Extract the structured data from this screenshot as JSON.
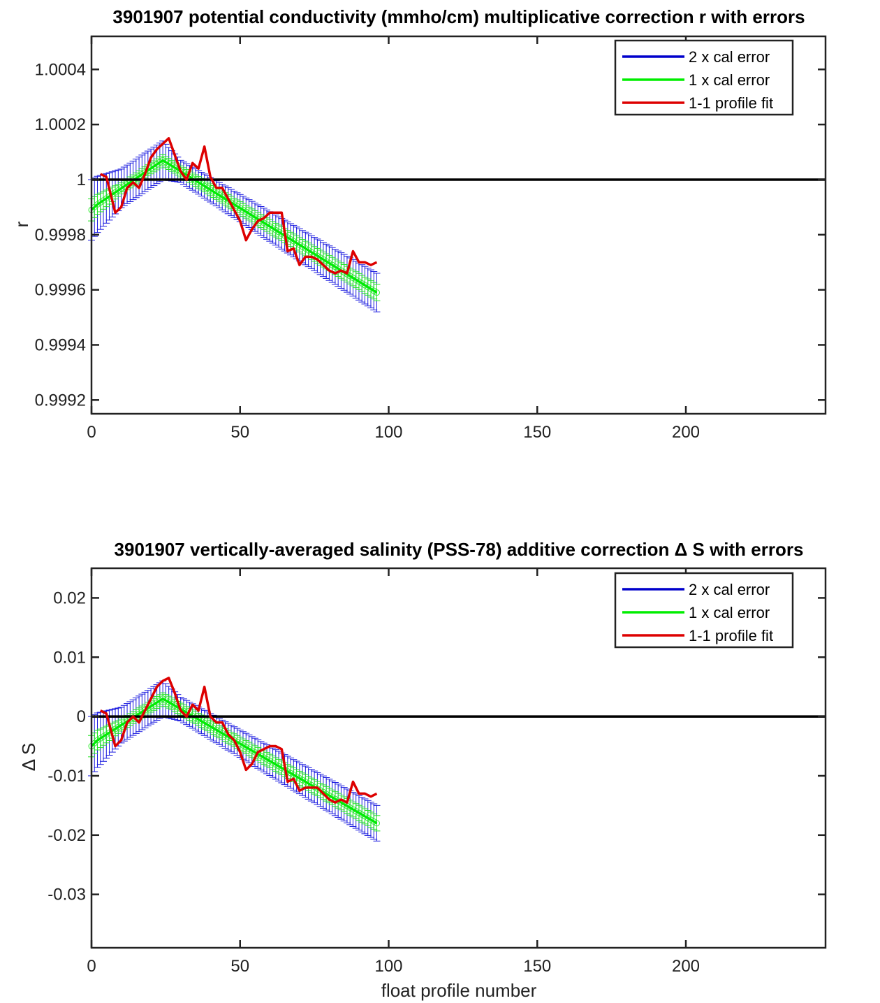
{
  "chart_data": [
    {
      "type": "line",
      "title": "3901907 potential conductivity (mmho/cm) multiplicative correction r with errors",
      "xlabel": "",
      "ylabel": "r",
      "xlim": [
        0,
        247
      ],
      "ylim": [
        0.99915,
        1.00052
      ],
      "xticks": [
        0,
        50,
        100,
        150,
        200
      ],
      "xticklabels": [
        "0",
        "50",
        "100",
        "150",
        "200"
      ],
      "yticks": [
        0.9992,
        0.9994,
        0.9996,
        0.9998,
        1,
        1.0002,
        1.0004
      ],
      "yticklabels": [
        "0.9992",
        "0.9994",
        "0.9996",
        "0.9998",
        "1",
        "1.0002",
        "1.0004"
      ],
      "reference_line": 1,
      "grid": false,
      "legend_position": "top-right",
      "legend": [
        {
          "label": "2 x cal error",
          "color": "#0000cc"
        },
        {
          "label": "1 x cal error",
          "color": "#00ee00"
        },
        {
          "label": "1-1 profile fit",
          "color": "#dd0000"
        }
      ],
      "fit": {
        "x": [
          0,
          2,
          24,
          96
        ],
        "y": [
          0.99989,
          0.99991,
          1.00007,
          0.99959
        ]
      },
      "error_halfwidth": {
        "x": [
          0,
          10,
          24,
          30,
          96
        ],
        "one_sigma": [
          4e-05,
          2e-05,
          2e-05,
          2e-05,
          3e-05
        ],
        "two_sigma": [
          0.00011,
          7e-05,
          7e-05,
          4e-05,
          7e-05
        ]
      },
      "series": [
        {
          "name": "1-1 profile fit",
          "color": "#dd0000",
          "x": [
            3,
            5,
            8,
            10,
            12,
            14,
            16,
            18,
            20,
            22,
            24,
            26,
            28,
            30,
            32,
            34,
            36,
            38,
            40,
            42,
            44,
            46,
            48,
            50,
            52,
            54,
            56,
            58,
            60,
            62,
            64,
            66,
            68,
            70,
            72,
            74,
            76,
            78,
            80,
            82,
            84,
            86,
            88,
            90,
            92,
            94,
            96
          ],
          "y": [
            1.00002,
            1.00001,
            0.99988,
            0.9999,
            0.99997,
            0.99999,
            0.99997,
            1.00002,
            1.00008,
            1.00011,
            1.00013,
            1.00015,
            1.00009,
            1.00003,
            1.0,
            1.00006,
            1.00004,
            1.00012,
            1.00001,
            0.99997,
            0.99997,
            0.99993,
            0.99989,
            0.99985,
            0.99978,
            0.99982,
            0.99985,
            0.99986,
            0.99988,
            0.99988,
            0.99988,
            0.99974,
            0.99975,
            0.99969,
            0.99972,
            0.99972,
            0.99971,
            0.99969,
            0.99967,
            0.99966,
            0.99967,
            0.99966,
            0.99974,
            0.9997,
            0.9997,
            0.99969,
            0.9997
          ]
        }
      ]
    },
    {
      "type": "line",
      "title": "3901907 vertically-averaged salinity (PSS-78) additive correction Δ S with errors",
      "xlabel": "float profile number",
      "ylabel": "Δ S",
      "xlim": [
        0,
        247
      ],
      "ylim": [
        -0.039,
        0.025
      ],
      "xticks": [
        0,
        50,
        100,
        150,
        200
      ],
      "xticklabels": [
        "0",
        "50",
        "100",
        "150",
        "200"
      ],
      "yticks": [
        -0.03,
        -0.02,
        -0.01,
        0,
        0.01,
        0.02
      ],
      "yticklabels": [
        "-0.03",
        "-0.02",
        "-0.01",
        "0",
        "0.01",
        "0.02"
      ],
      "reference_line": 0,
      "grid": false,
      "legend_position": "top-right",
      "legend": [
        {
          "label": "2 x cal error",
          "color": "#0000cc"
        },
        {
          "label": "1 x cal error",
          "color": "#00ee00"
        },
        {
          "label": "1-1 profile fit",
          "color": "#dd0000"
        }
      ],
      "fit": {
        "x": [
          0,
          2,
          24,
          96
        ],
        "y": [
          -0.005,
          -0.004,
          0.003,
          -0.018
        ]
      },
      "error_halfwidth": {
        "x": [
          0,
          10,
          24,
          30,
          96
        ],
        "one_sigma": [
          0.0018,
          0.001,
          0.001,
          0.001,
          0.0013
        ],
        "two_sigma": [
          0.005,
          0.003,
          0.003,
          0.002,
          0.003
        ]
      },
      "series": [
        {
          "name": "1-1 profile fit",
          "color": "#dd0000",
          "x": [
            3,
            5,
            8,
            10,
            12,
            14,
            16,
            18,
            20,
            22,
            24,
            26,
            28,
            30,
            32,
            34,
            36,
            38,
            40,
            42,
            44,
            46,
            48,
            50,
            52,
            54,
            56,
            58,
            60,
            62,
            64,
            66,
            68,
            70,
            72,
            74,
            76,
            78,
            80,
            82,
            84,
            86,
            88,
            90,
            92,
            94,
            96
          ],
          "y": [
            0.001,
            0.0005,
            -0.005,
            -0.004,
            -0.001,
            0,
            -0.001,
            0.001,
            0.003,
            0.005,
            0.006,
            0.0065,
            0.004,
            0.001,
            0,
            0.002,
            0.001,
            0.005,
            0,
            -0.001,
            -0.001,
            -0.003,
            -0.004,
            -0.006,
            -0.009,
            -0.008,
            -0.006,
            -0.0055,
            -0.005,
            -0.005,
            -0.0055,
            -0.011,
            -0.0105,
            -0.0125,
            -0.012,
            -0.012,
            -0.012,
            -0.013,
            -0.014,
            -0.0145,
            -0.014,
            -0.0145,
            -0.011,
            -0.013,
            -0.013,
            -0.0135,
            -0.013
          ]
        }
      ]
    }
  ]
}
